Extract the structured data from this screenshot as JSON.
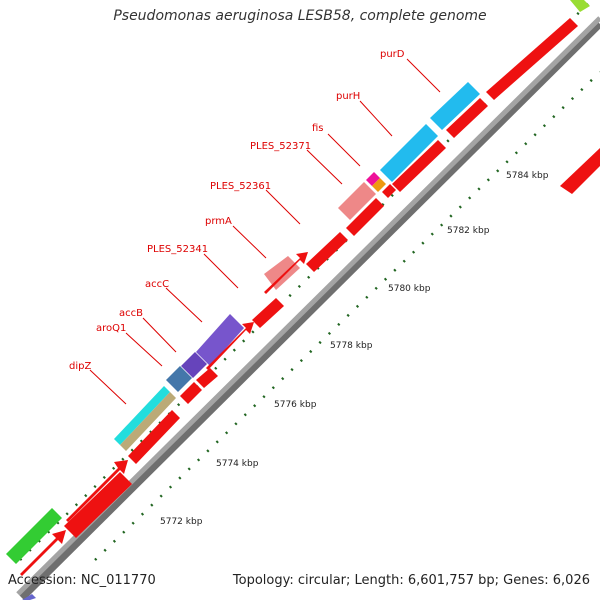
{
  "map": {
    "title": "Pseudomonas aeruginosa LESB58, complete genome",
    "accession": "Accession: NC_011770",
    "summary": "Topology: circular; Length: 6,601,757 bp; Genes: 6,026",
    "scale_labels": [
      "5772 kbp",
      "5774 kbp",
      "5776 kbp",
      "5778 kbp",
      "5780 kbp",
      "5782 kbp",
      "5784 kbp"
    ],
    "gene_labels": [
      "purD",
      "purH",
      "fis",
      "PLES_52371",
      "PLES_52361",
      "prmA",
      "PLES_52341",
      "accC",
      "accB",
      "aroQ1",
      "dipZ"
    ],
    "colors": {
      "cds_red": "#ee1111",
      "backbone": "#999999",
      "cyan": "#22bbee",
      "pink": "#ee8888",
      "purple": "#7755cc",
      "green": "#33cc33",
      "steel": "#4477aa",
      "label_red": "#dd0000",
      "tick_green": "#226622"
    }
  }
}
